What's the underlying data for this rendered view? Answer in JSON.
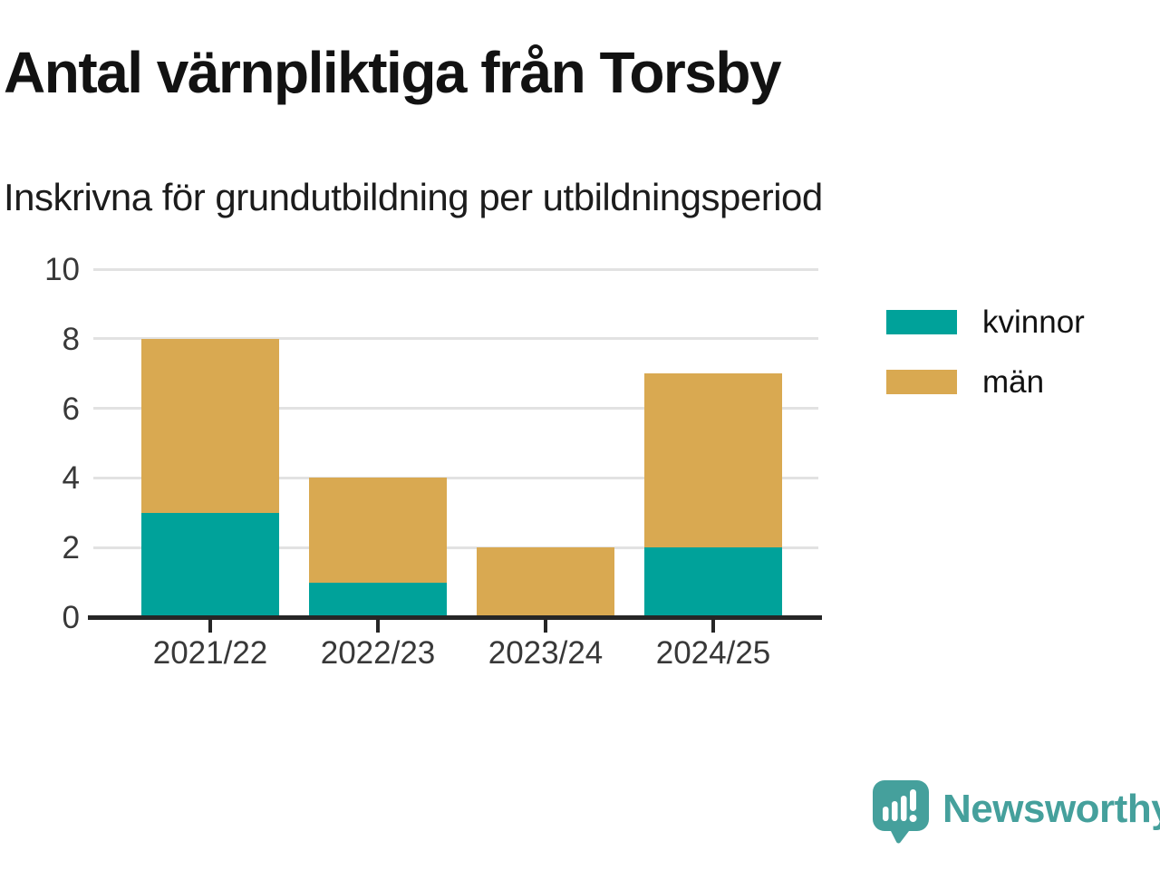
{
  "title": "Antal värnpliktiga från Torsby",
  "subtitle": "Inskrivna för grundutbildning per utbildningsperiod",
  "chart_data": {
    "type": "bar",
    "stacked": true,
    "title": "Antal värnpliktiga från Torsby",
    "subtitle": "Inskrivna för grundutbildning per utbildningsperiod",
    "categories": [
      "2021/22",
      "2022/23",
      "2023/24",
      "2024/25"
    ],
    "series": [
      {
        "name": "kvinnor",
        "color": "#00A29A",
        "values": [
          3,
          1,
          0,
          2
        ]
      },
      {
        "name": "män",
        "color": "#D9A951",
        "values": [
          5,
          3,
          2,
          5
        ]
      }
    ],
    "totals": [
      8,
      4,
      2,
      7
    ],
    "xlabel": "",
    "ylabel": "",
    "ylim": [
      0,
      10
    ],
    "yticks": [
      0,
      2,
      4,
      6,
      8,
      10
    ],
    "grid": true,
    "legend_position": "right"
  },
  "colors": {
    "kvinnor": "#00A29A",
    "man": "#D9A951",
    "axis": "#262626",
    "gridline": "#e2e2e2",
    "tick_text": "#383838",
    "brand": "#45A09C"
  },
  "branding": {
    "name": "Newsworthy"
  }
}
